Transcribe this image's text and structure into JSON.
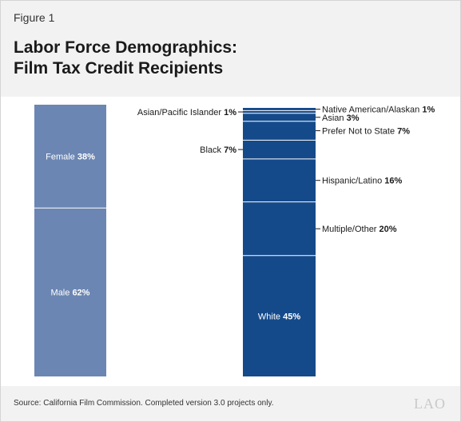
{
  "figure_label": "Figure 1",
  "title_lines": [
    "Labor Force Demographics:",
    "Film Tax Credit Recipients"
  ],
  "source": "Source: California Film Commission. Completed version 3.0 projects only.",
  "logo_text": "LAO",
  "colors": {
    "gender_bar": "#6b86b2",
    "race_bar": "#154a8a",
    "segment_divider": "#ffffff",
    "label_text": "#1a1a1a"
  },
  "chart_data": [
    {
      "type": "bar",
      "stacked": true,
      "title": "",
      "unit": "%",
      "segments": [
        {
          "name": "Female",
          "value": 38,
          "value_text": "38%"
        },
        {
          "name": "Male",
          "value": 62,
          "value_text": "62%"
        }
      ]
    },
    {
      "type": "bar",
      "stacked": true,
      "title": "",
      "unit": "%",
      "segments": [
        {
          "name": "Native American/Alaskan",
          "value": 1,
          "value_text": "1%",
          "label_side": "right"
        },
        {
          "name": "Asian/Pacific Islander",
          "value": 1,
          "value_text": "1%",
          "label_side": "left"
        },
        {
          "name": "Asian",
          "value": 3,
          "value_text": "3%",
          "label_side": "right"
        },
        {
          "name": "Prefer Not to State",
          "value": 7,
          "value_text": "7%",
          "label_side": "right"
        },
        {
          "name": "Black",
          "value": 7,
          "value_text": "7%",
          "label_side": "left"
        },
        {
          "name": "Hispanic/Latino",
          "value": 16,
          "value_text": "16%",
          "label_side": "right"
        },
        {
          "name": "Multiple/Other",
          "value": 20,
          "value_text": "20%",
          "label_side": "right"
        },
        {
          "name": "White",
          "value": 45,
          "value_text": "45%",
          "label_side": "inside"
        }
      ]
    }
  ]
}
